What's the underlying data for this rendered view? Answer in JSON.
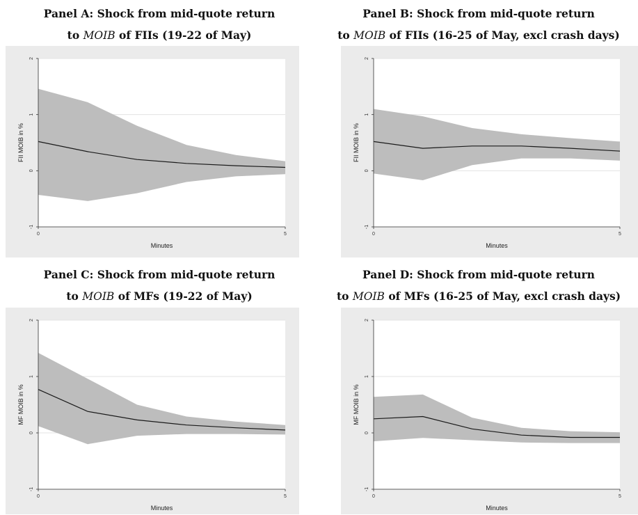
{
  "chart_data": [
    {
      "type": "line",
      "panel_title_line1": "Panel A: Shock from mid-quote return",
      "panel_title_line2": {
        "pre": "to ",
        "math": "MOIB",
        "post": " of FIIs (19-22 of May)"
      },
      "xlabel": "Minutes",
      "ylabel": "FII MOIB in %",
      "xlim": [
        0,
        5
      ],
      "ylim": [
        -1,
        2
      ],
      "xticks": [
        "0",
        "5"
      ],
      "yticks": [
        "-1",
        "0",
        "1",
        "2"
      ],
      "grid": true,
      "x": [
        0,
        1,
        2,
        3,
        4,
        5
      ],
      "series": [
        {
          "values": [
            0.52,
            0.34,
            0.2,
            0.13,
            0.09,
            0.06
          ]
        }
      ],
      "band_upper": [
        1.46,
        1.22,
        0.8,
        0.46,
        0.28,
        0.17
      ],
      "band_lower": [
        -0.43,
        -0.54,
        -0.4,
        -0.2,
        -0.1,
        -0.06
      ],
      "colors": {
        "band": "#bdbdbd",
        "line": "#1a1a1a",
        "plot_bg": "#ebebeb"
      }
    },
    {
      "type": "line",
      "panel_title_line1": "Panel B: Shock from mid-quote return",
      "panel_title_line2": {
        "pre": "to ",
        "math": "MOIB",
        "post": " of FIIs (16-25 of May, excl crash days)"
      },
      "xlabel": "Minutes",
      "ylabel": "FII MOIB in %",
      "xlim": [
        0,
        5
      ],
      "ylim": [
        -1,
        2
      ],
      "xticks": [
        "0",
        "5"
      ],
      "yticks": [
        "-1",
        "0",
        "1",
        "2"
      ],
      "grid": true,
      "x": [
        0,
        1,
        2,
        3,
        4,
        5
      ],
      "series": [
        {
          "values": [
            0.52,
            0.4,
            0.44,
            0.44,
            0.4,
            0.35
          ]
        }
      ],
      "band_upper": [
        1.1,
        0.97,
        0.76,
        0.65,
        0.58,
        0.52
      ],
      "band_lower": [
        -0.05,
        -0.17,
        0.1,
        0.22,
        0.22,
        0.18
      ],
      "colors": {
        "band": "#bdbdbd",
        "line": "#1a1a1a",
        "plot_bg": "#ebebeb"
      }
    },
    {
      "type": "line",
      "panel_title_line1": "Panel C: Shock from mid-quote return",
      "panel_title_line2": {
        "pre": "to ",
        "math": "MOIB",
        "post": " of MFs (19-22 of May)"
      },
      "xlabel": "Minutes",
      "ylabel": "MF MOIB in %",
      "xlim": [
        0,
        5
      ],
      "ylim": [
        -1,
        2
      ],
      "xticks": [
        "0",
        "5"
      ],
      "yticks": [
        "-1",
        "0",
        "1",
        "2"
      ],
      "grid": true,
      "x": [
        0,
        1,
        2,
        3,
        4,
        5
      ],
      "series": [
        {
          "values": [
            0.77,
            0.38,
            0.23,
            0.14,
            0.09,
            0.05
          ]
        }
      ],
      "band_upper": [
        1.42,
        0.96,
        0.5,
        0.29,
        0.2,
        0.14
      ],
      "band_lower": [
        0.12,
        -0.2,
        -0.05,
        -0.02,
        -0.02,
        -0.03
      ],
      "colors": {
        "band": "#bdbdbd",
        "line": "#1a1a1a",
        "plot_bg": "#ebebeb"
      }
    },
    {
      "type": "line",
      "panel_title_line1": "Panel D: Shock from mid-quote return",
      "panel_title_line2": {
        "pre": "to ",
        "math": "MOIB",
        "post": " of MFs (16-25 of May, excl crash days)"
      },
      "xlabel": "Minutes",
      "ylabel": "MF MOIB in %",
      "xlim": [
        0,
        5
      ],
      "ylim": [
        -1,
        2
      ],
      "xticks": [
        "0",
        "5"
      ],
      "yticks": [
        "-1",
        "0",
        "1",
        "2"
      ],
      "grid": true,
      "x": [
        0,
        1,
        2,
        3,
        4,
        5
      ],
      "series": [
        {
          "values": [
            0.25,
            0.29,
            0.07,
            -0.04,
            -0.08,
            -0.08
          ]
        }
      ],
      "band_upper": [
        0.64,
        0.68,
        0.27,
        0.09,
        0.03,
        0.01
      ],
      "band_lower": [
        -0.15,
        -0.09,
        -0.13,
        -0.17,
        -0.18,
        -0.18
      ],
      "colors": {
        "band": "#bdbdbd",
        "line": "#1a1a1a",
        "plot_bg": "#ebebeb"
      }
    }
  ]
}
